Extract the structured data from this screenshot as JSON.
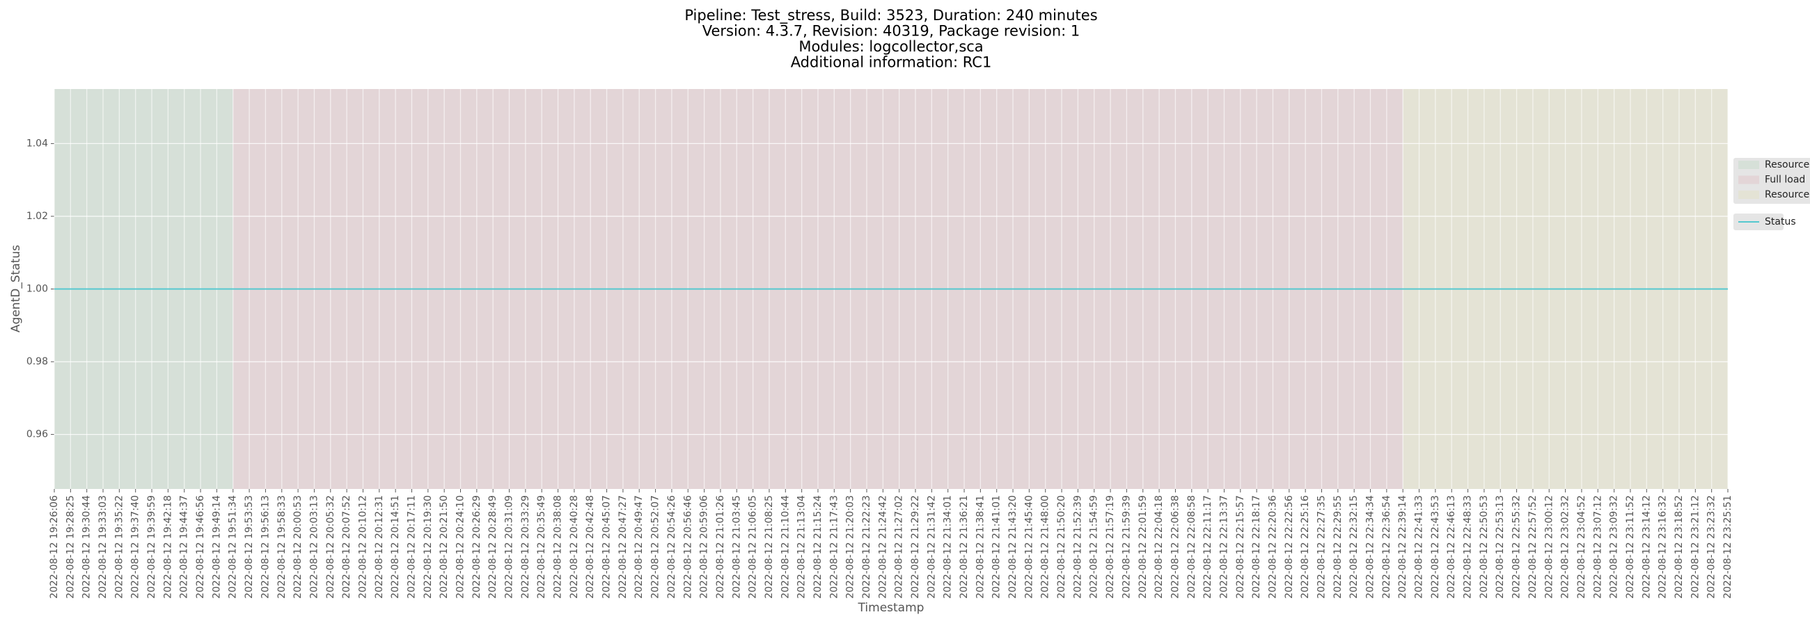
{
  "chart_data": {
    "type": "line",
    "title": [
      "Pipeline: Test_stress, Build: 3523, Duration: 240 minutes",
      "Version: 4.3.7, Revision: 40319, Package revision: 1",
      "Modules: logcollector,sca",
      "Additional information: RC1"
    ],
    "x_label": "Timestamp",
    "y_label": "AgentD_Status",
    "categories": [
      "2022-08-12 19:26:06",
      "2022-08-12 19:28:25",
      "2022-08-12 19:30:44",
      "2022-08-12 19:33:03",
      "2022-08-12 19:35:22",
      "2022-08-12 19:37:40",
      "2022-08-12 19:39:59",
      "2022-08-12 19:42:18",
      "2022-08-12 19:44:37",
      "2022-08-12 19:46:56",
      "2022-08-12 19:49:14",
      "2022-08-12 19:51:34",
      "2022-08-12 19:53:53",
      "2022-08-12 19:56:13",
      "2022-08-12 19:58:33",
      "2022-08-12 20:00:53",
      "2022-08-12 20:03:13",
      "2022-08-12 20:05:32",
      "2022-08-12 20:07:52",
      "2022-08-12 20:10:12",
      "2022-08-12 20:12:31",
      "2022-08-12 20:14:51",
      "2022-08-12 20:17:11",
      "2022-08-12 20:19:30",
      "2022-08-12 20:21:50",
      "2022-08-12 20:24:10",
      "2022-08-12 20:26:29",
      "2022-08-12 20:28:49",
      "2022-08-12 20:31:09",
      "2022-08-12 20:33:29",
      "2022-08-12 20:35:49",
      "2022-08-12 20:38:08",
      "2022-08-12 20:40:28",
      "2022-08-12 20:42:48",
      "2022-08-12 20:45:07",
      "2022-08-12 20:47:27",
      "2022-08-12 20:49:47",
      "2022-08-12 20:52:07",
      "2022-08-12 20:54:26",
      "2022-08-12 20:56:46",
      "2022-08-12 20:59:06",
      "2022-08-12 21:01:26",
      "2022-08-12 21:03:45",
      "2022-08-12 21:06:05",
      "2022-08-12 21:08:25",
      "2022-08-12 21:10:44",
      "2022-08-12 21:13:04",
      "2022-08-12 21:15:24",
      "2022-08-12 21:17:43",
      "2022-08-12 21:20:03",
      "2022-08-12 21:22:23",
      "2022-08-12 21:24:42",
      "2022-08-12 21:27:02",
      "2022-08-12 21:29:22",
      "2022-08-12 21:31:42",
      "2022-08-12 21:34:01",
      "2022-08-12 21:36:21",
      "2022-08-12 21:38:41",
      "2022-08-12 21:41:01",
      "2022-08-12 21:43:20",
      "2022-08-12 21:45:40",
      "2022-08-12 21:48:00",
      "2022-08-12 21:50:20",
      "2022-08-12 21:52:39",
      "2022-08-12 21:54:59",
      "2022-08-12 21:57:19",
      "2022-08-12 21:59:39",
      "2022-08-12 22:01:59",
      "2022-08-12 22:04:18",
      "2022-08-12 22:06:38",
      "2022-08-12 22:08:58",
      "2022-08-12 22:11:17",
      "2022-08-12 22:13:37",
      "2022-08-12 22:15:57",
      "2022-08-12 22:18:17",
      "2022-08-12 22:20:36",
      "2022-08-12 22:22:56",
      "2022-08-12 22:25:16",
      "2022-08-12 22:27:35",
      "2022-08-12 22:29:55",
      "2022-08-12 22:32:15",
      "2022-08-12 22:34:34",
      "2022-08-12 22:36:54",
      "2022-08-12 22:39:14",
      "2022-08-12 22:41:33",
      "2022-08-12 22:43:53",
      "2022-08-12 22:46:13",
      "2022-08-12 22:48:33",
      "2022-08-12 22:50:53",
      "2022-08-12 22:53:13",
      "2022-08-12 22:55:32",
      "2022-08-12 22:57:52",
      "2022-08-12 23:00:12",
      "2022-08-12 23:02:32",
      "2022-08-12 23:04:52",
      "2022-08-12 23:07:12",
      "2022-08-12 23:09:32",
      "2022-08-12 23:11:52",
      "2022-08-12 23:14:12",
      "2022-08-12 23:16:32",
      "2022-08-12 23:18:52",
      "2022-08-12 23:21:12",
      "2022-08-12 23:23:32",
      "2022-08-12 23:25:51"
    ],
    "series": [
      {
        "name": "Status",
        "color": "#55c8cf",
        "values": [
          1,
          1,
          1,
          1,
          1,
          1,
          1,
          1,
          1,
          1,
          1,
          1,
          1,
          1,
          1,
          1,
          1,
          1,
          1,
          1,
          1,
          1,
          1,
          1,
          1,
          1,
          1,
          1,
          1,
          1,
          1,
          1,
          1,
          1,
          1,
          1,
          1,
          1,
          1,
          1,
          1,
          1,
          1,
          1,
          1,
          1,
          1,
          1,
          1,
          1,
          1,
          1,
          1,
          1,
          1,
          1,
          1,
          1,
          1,
          1,
          1,
          1,
          1,
          1,
          1,
          1,
          1,
          1,
          1,
          1,
          1,
          1,
          1,
          1,
          1,
          1,
          1,
          1,
          1,
          1,
          1,
          1,
          1,
          1,
          1,
          1,
          1,
          1,
          1,
          1,
          1,
          1,
          1,
          1,
          1,
          1,
          1,
          1,
          1,
          1,
          1,
          1,
          1,
          1
        ]
      }
    ],
    "spans": [
      {
        "name": "Resources",
        "color": "#d6e0d8",
        "start": "2022-08-12 19:26:06",
        "end": "2022-08-12 19:51:34"
      },
      {
        "name": "Full load",
        "color": "#e3d5d7",
        "start": "2022-08-12 19:51:34",
        "end": "2022-08-12 22:39:14"
      },
      {
        "name": "Resources",
        "color": "#e4e3d5",
        "start": "2022-08-12 22:39:14",
        "end": "2022-08-12 23:25:51"
      }
    ],
    "ylim": [
      0.945,
      1.055
    ],
    "yticks": [
      0.96,
      0.98,
      {
        "value": 1,
        "label": "1.00"
      },
      1.02,
      1.04
    ],
    "grid": true
  }
}
